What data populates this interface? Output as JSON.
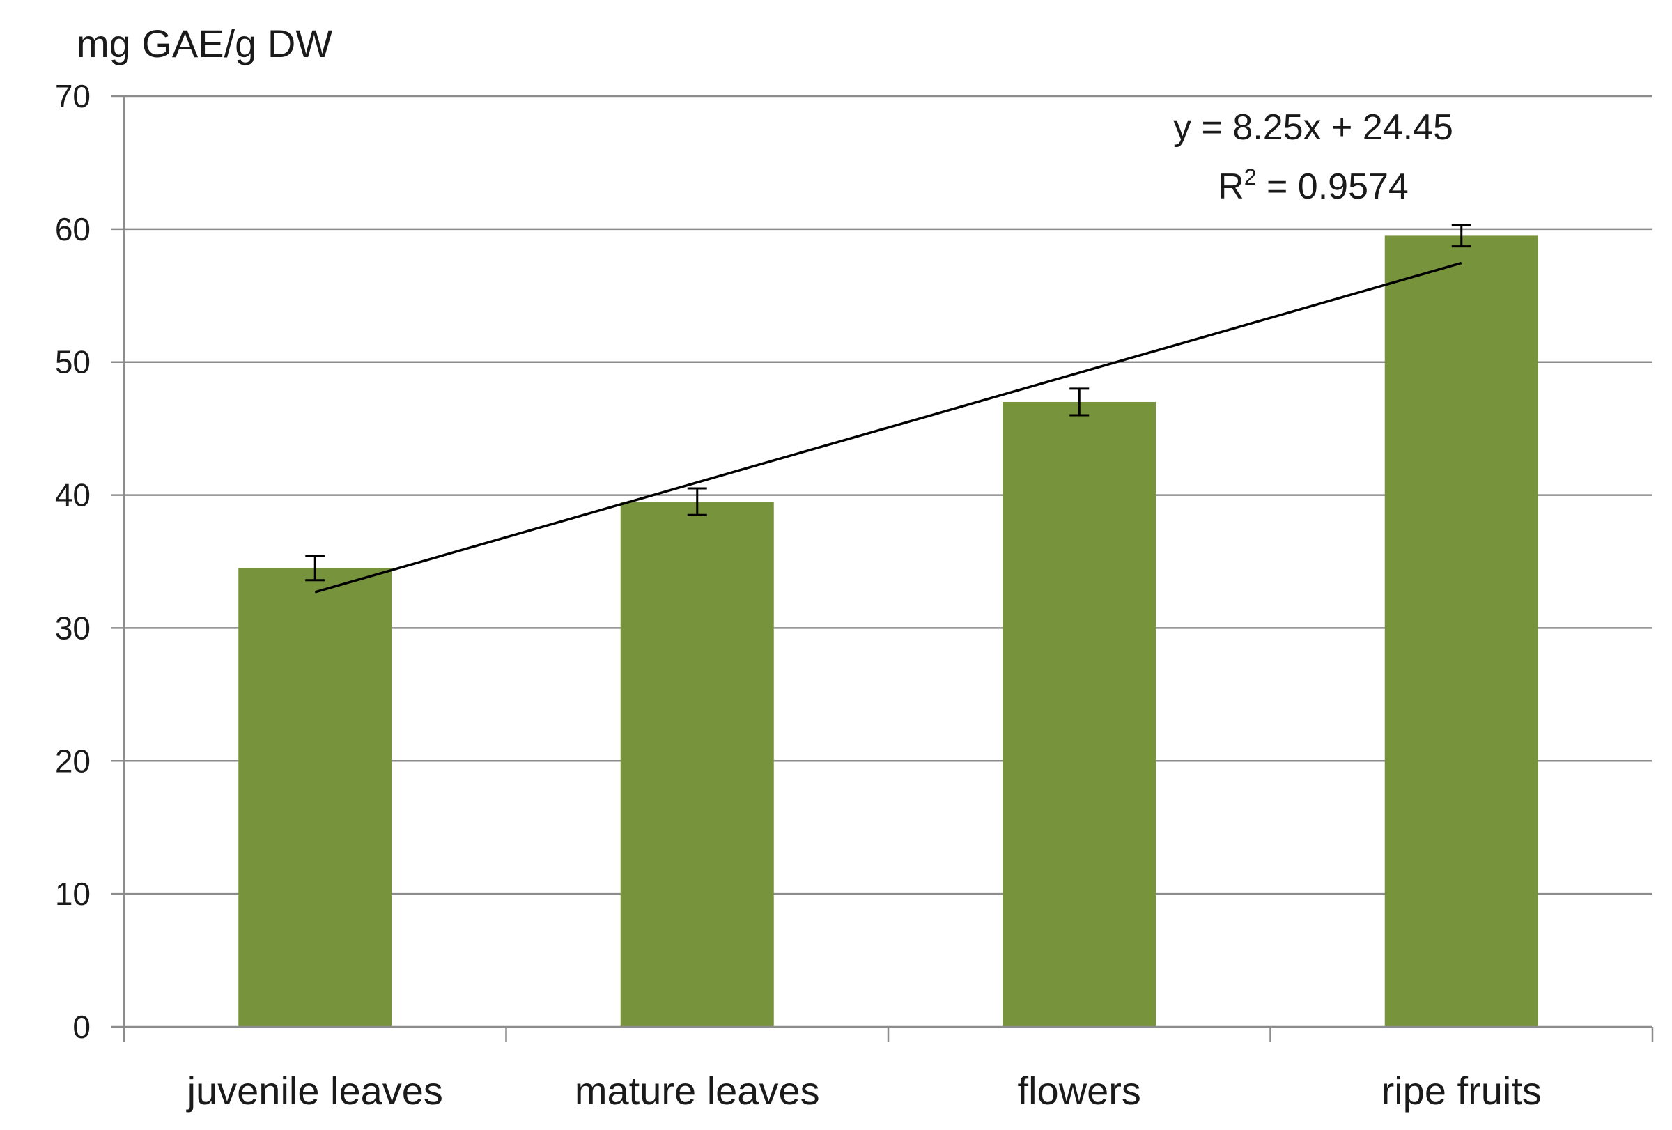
{
  "chart_data": {
    "type": "bar",
    "ylabel": "mg GAE/g DW",
    "ylim": [
      0,
      70
    ],
    "yticks": [
      "0",
      "10",
      "20",
      "30",
      "40",
      "50",
      "60",
      "70"
    ],
    "grid": true,
    "categories": [
      "juvenile leaves",
      "mature leaves",
      "flowers",
      "ripe fruits"
    ],
    "values": [
      34.5,
      39.5,
      47.0,
      59.5
    ],
    "errors": [
      0.9,
      1.0,
      1.0,
      0.8
    ],
    "bar_color": "#77933c",
    "trendline": {
      "type": "linear",
      "slope": 8.25,
      "intercept": 24.45,
      "equation": "y = 8.25x + 24.45",
      "r_squared_label": "R",
      "r_squared_sup": "2",
      "r_squared_value": " = 0.9574"
    }
  }
}
